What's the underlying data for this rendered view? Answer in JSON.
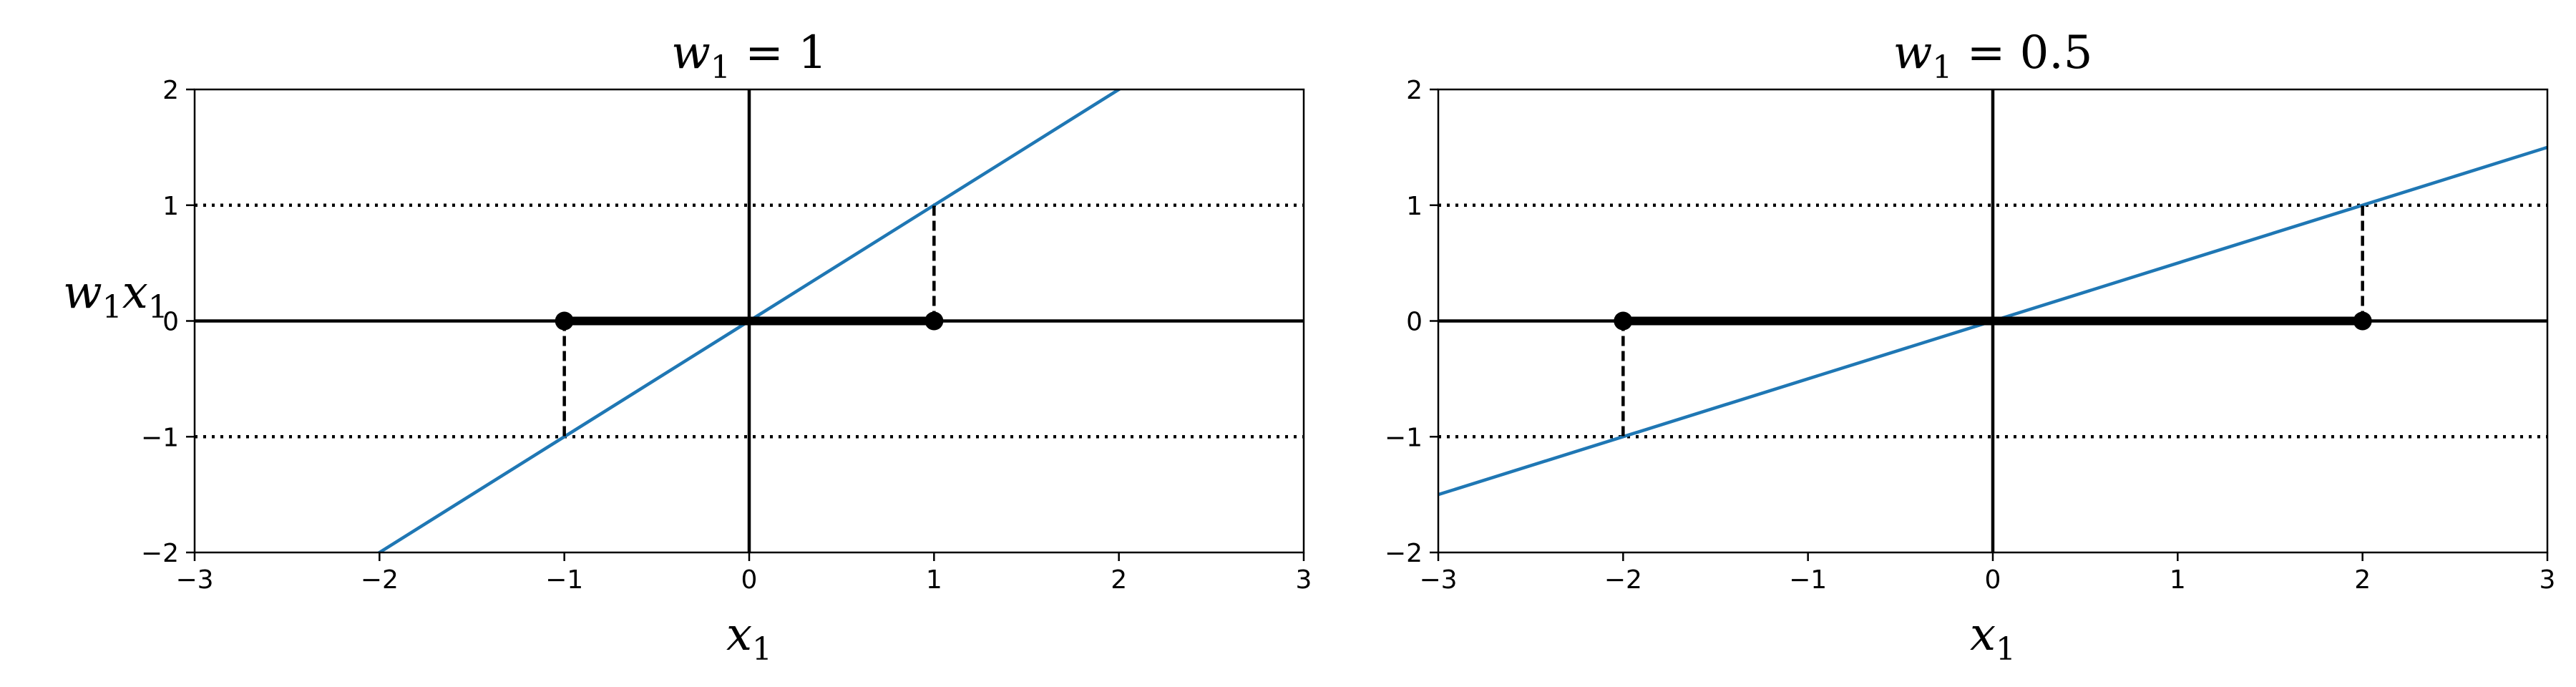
{
  "chart_data": [
    {
      "type": "line",
      "title": "w₁ = 1",
      "title_main": "w",
      "title_sub": "1",
      "title_rest": " = 1",
      "xlabel_main": "x",
      "xlabel_sub": "1",
      "ylabel_parts": [
        "w",
        "1",
        "x",
        "1"
      ],
      "xlim": [
        -3,
        3
      ],
      "ylim": [
        -2,
        2
      ],
      "xticks": [
        -3,
        -2,
        -1,
        0,
        1,
        2,
        3
      ],
      "yticks": [
        -2,
        -1,
        0,
        1,
        2
      ],
      "xtick_labels": [
        "−3",
        "−2",
        "−1",
        "0",
        "1",
        "2",
        "3"
      ],
      "ytick_labels": [
        "−2",
        "−1",
        "0",
        "1",
        "2"
      ],
      "grid": false,
      "series": [
        {
          "kind": "line",
          "slope": 1,
          "x": [
            -3,
            3
          ],
          "color": "#1f77b4"
        }
      ],
      "reference_lines": {
        "dotted_y": [
          1,
          -1
        ],
        "axis_x": 0,
        "axis_y": 0
      },
      "thick_segment": {
        "x": [
          -1,
          1
        ],
        "y": 0
      },
      "points": [
        {
          "x": -1,
          "y": 0
        },
        {
          "x": 1,
          "y": 0
        }
      ],
      "dashed_drops": [
        {
          "x": -1,
          "y": [
            0,
            -1
          ]
        },
        {
          "x": 1,
          "y": [
            0,
            1
          ]
        }
      ]
    },
    {
      "type": "line",
      "title": "w₁ = 0.5",
      "title_main": "w",
      "title_sub": "1",
      "title_rest": " = 0.5",
      "xlabel_main": "x",
      "xlabel_sub": "1",
      "xlim": [
        -3,
        3
      ],
      "ylim": [
        -2,
        2
      ],
      "xticks": [
        -3,
        -2,
        -1,
        0,
        1,
        2,
        3
      ],
      "yticks": [
        -2,
        -1,
        0,
        1,
        2
      ],
      "xtick_labels": [
        "−3",
        "−2",
        "−1",
        "0",
        "1",
        "2",
        "3"
      ],
      "ytick_labels": [
        "−2",
        "−1",
        "0",
        "1",
        "2"
      ],
      "grid": false,
      "series": [
        {
          "kind": "line",
          "slope": 0.5,
          "x": [
            -3,
            3
          ],
          "color": "#1f77b4"
        }
      ],
      "reference_lines": {
        "dotted_y": [
          1,
          -1
        ],
        "axis_x": 0,
        "axis_y": 0
      },
      "thick_segment": {
        "x": [
          -2,
          2
        ],
        "y": 0
      },
      "points": [
        {
          "x": -2,
          "y": 0
        },
        {
          "x": 2,
          "y": 0
        }
      ],
      "dashed_drops": [
        {
          "x": -2,
          "y": [
            0,
            -1
          ]
        },
        {
          "x": 2,
          "y": [
            0,
            1
          ]
        }
      ]
    }
  ]
}
